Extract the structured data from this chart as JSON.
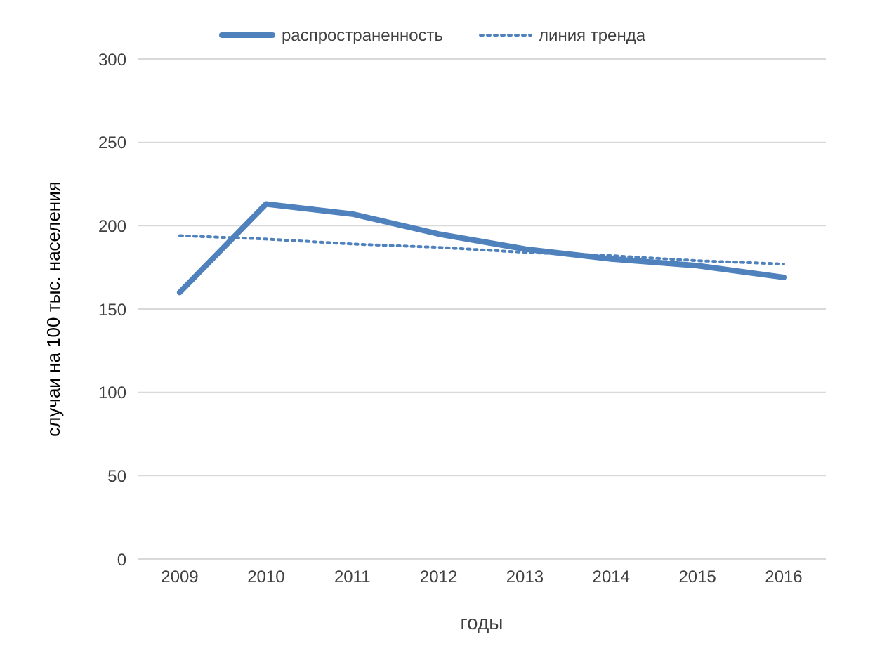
{
  "chart_data": {
    "type": "line",
    "xlabel": "годы",
    "ylabel": "случаи на 100 тыс. населения",
    "categories": [
      "2009",
      "2010",
      "2011",
      "2012",
      "2013",
      "2014",
      "2015",
      "2016"
    ],
    "series": [
      {
        "name": "распространенность",
        "color": "#4f81bd",
        "values": [
          160,
          213,
          207,
          195,
          186,
          180,
          176,
          169
        ],
        "line_style": "solid"
      },
      {
        "name": "линия тренда",
        "color": "#4f81bd",
        "values": [
          194,
          192,
          189,
          187,
          184,
          182,
          179,
          177
        ],
        "line_style": "dotted"
      }
    ],
    "ylim": [
      0,
      300
    ],
    "yticks": [
      0,
      50,
      100,
      150,
      200,
      250,
      300
    ],
    "grid": "y",
    "legend": "top",
    "marker": "none"
  }
}
